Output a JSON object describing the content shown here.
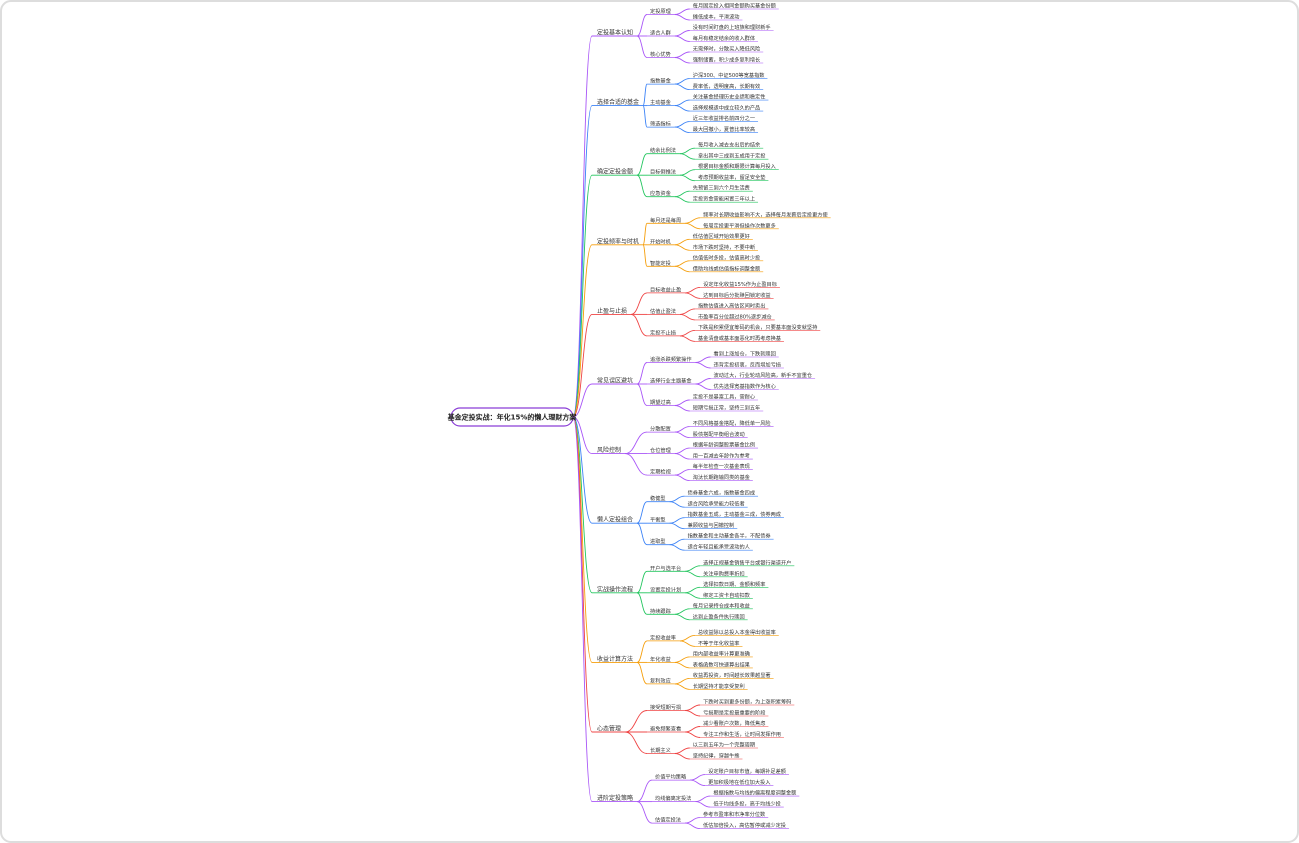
{
  "root": {
    "label": "基金定投实战：年化15%的懒人理财方案"
  },
  "branches": [
    {
      "label": "定投基本认知",
      "color": "#a855f7",
      "children": [
        {
          "label": "定投原理",
          "children": [
            "每月固定投入相同金额购买基金份额",
            "摊低成本，平滑波动"
          ]
        },
        {
          "label": "适合人群",
          "children": [
            "没有时间盯盘的上班族和理财新手",
            "每月有稳定结余的收入群体"
          ]
        },
        {
          "label": "核心优势",
          "children": [
            "无需择时，分散买入降低风险",
            "强制储蓄，积少成多复利增长"
          ]
        }
      ]
    },
    {
      "label": "选择合适的基金",
      "color": "#3b82f6",
      "children": [
        {
          "label": "指数基金",
          "children": [
            "沪深300、中证500等宽基指数",
            "费率低，透明度高，长期有效"
          ]
        },
        {
          "label": "主动基金",
          "children": [
            "关注基金经理历史业绩和稳定性",
            "选择规模适中成立较久的产品"
          ]
        },
        {
          "label": "筛选指标",
          "children": [
            "近三年收益排名前四分之一",
            "最大回撤小，夏普比率较高"
          ]
        }
      ]
    },
    {
      "label": "确定定投金额",
      "color": "#22c55e",
      "children": [
        {
          "label": "结余比例法",
          "children": [
            "每月收入减去支出后的结余",
            "拿出其中三成到五成用于定投"
          ]
        },
        {
          "label": "目标倒推法",
          "children": [
            "根据目标金额和期限计算每月投入",
            "考虑预期收益率，留足安全垫"
          ]
        },
        {
          "label": "应急资金",
          "children": [
            "先预留三到六个月生活费",
            "定投资金需能闲置三年以上"
          ]
        }
      ]
    },
    {
      "label": "定投频率与时机",
      "color": "#f59e0b",
      "children": [
        {
          "label": "每月还是每周",
          "children": [
            "频率对长期收益影响不大，选择每月发薪后定投更方便",
            "每周定投更平滑但操作次数更多"
          ]
        },
        {
          "label": "开始时机",
          "children": [
            "低估值区域开始效果更好",
            "市场下跌时坚持，不要中断"
          ]
        },
        {
          "label": "智能定投",
          "children": [
            "估值低时多投，估值高时少投",
            "借助均线或估值指标调整金额"
          ]
        }
      ]
    },
    {
      "label": "止盈与止损",
      "color": "#ef4444",
      "children": [
        {
          "label": "目标收益止盈",
          "children": [
            "设定年化收益15%作为止盈目标",
            "达到目标后分批赎回锁定收益"
          ]
        },
        {
          "label": "估值止盈法",
          "children": [
            "指数估值进入高估区间时卖出",
            "市盈率百分位超过80%逐步减仓"
          ]
        },
        {
          "label": "定投不止损",
          "children": [
            "下跌是积累便宜筹码的机会，只要基本面没变就坚持",
            "基金清盘或基本面恶化时再考虑换基"
          ]
        }
      ]
    },
    {
      "label": "常见误区避坑",
      "color": "#a855f7",
      "children": [
        {
          "label": "追涨杀跌频繁操作",
          "children": [
            "看到上涨加仓，下跌就赎回",
            "违背定投初衷，反而增加亏损"
          ]
        },
        {
          "label": "选择行业主题基金",
          "children": [
            "波动过大，行业轮动风险高，新手不宜重仓",
            "优先选择宽基指数作为核心"
          ]
        },
        {
          "label": "期望过高",
          "children": [
            "定投不是暴富工具，需耐心",
            "短期亏损正常，坚持三到五年"
          ]
        }
      ]
    },
    {
      "label": "风险控制",
      "color": "#a855f7",
      "children": [
        {
          "label": "分散配置",
          "children": [
            "不同风格基金搭配，降低单一风险",
            "股债搭配平衡组合波动"
          ]
        },
        {
          "label": "仓位管理",
          "children": [
            "根据年龄调整股票基金比例",
            "用一百减去年龄作为参考"
          ]
        },
        {
          "label": "定期检视",
          "children": [
            "每半年检查一次基金表现",
            "淘汰长期跑输同类的基金"
          ]
        }
      ]
    },
    {
      "label": "懒人定投组合",
      "color": "#3b82f6",
      "children": [
        {
          "label": "稳健型",
          "children": [
            "债券基金六成，指数基金四成",
            "适合风险承受能力较低者"
          ]
        },
        {
          "label": "平衡型",
          "children": [
            "指数基金五成，主动基金三成，债券两成",
            "兼顾收益与回撤控制"
          ]
        },
        {
          "label": "进取型",
          "children": [
            "指数基金和主动基金各半，不配债券",
            "适合年轻且能承受波动的人"
          ]
        }
      ]
    },
    {
      "label": "实战操作流程",
      "color": "#22c55e",
      "children": [
        {
          "label": "开户与选平台",
          "children": [
            "选择正规基金销售平台或银行渠道开户",
            "关注申购费率折扣"
          ]
        },
        {
          "label": "设置定投计划",
          "children": [
            "选择扣款日期、金额和频率",
            "绑定工资卡自动扣款"
          ]
        },
        {
          "label": "持续跟踪",
          "children": [
            "每月记录持仓成本和收益",
            "达到止盈条件执行赎回"
          ]
        }
      ]
    },
    {
      "label": "收益计算方法",
      "color": "#f59e0b",
      "children": [
        {
          "label": "定投收益率",
          "children": [
            "总收益除以总投入本金得出收益率",
            "不等于年化收益率"
          ]
        },
        {
          "label": "年化收益",
          "children": [
            "用内部收益率计算更准确",
            "表格函数可快速算出结果"
          ]
        },
        {
          "label": "复利效应",
          "children": [
            "收益再投资，时间越长效果越显著",
            "长期坚持才能享受复利"
          ]
        }
      ]
    },
    {
      "label": "心态管理",
      "color": "#ef4444",
      "children": [
        {
          "label": "接受短期亏损",
          "children": [
            "下跌时买到更多份额，为上涨积累筹码",
            "亏损期是定投最重要的阶段"
          ]
        },
        {
          "label": "避免频繁查看",
          "children": [
            "减少看账户次数，降低焦虑",
            "专注工作和生活，让时间发挥作用"
          ]
        },
        {
          "label": "长期主义",
          "children": [
            "以三到五年为一个完整周期",
            "坚持纪律，穿越牛熊"
          ]
        }
      ]
    },
    {
      "label": "进阶定投策略",
      "color": "#a855f7",
      "children": [
        {
          "label": "价值平均策略",
          "children": [
            "设定账户目标市值，每期补足差额",
            "更加积极地在低位加大投入"
          ]
        },
        {
          "label": "均线偏离定投法",
          "children": [
            "根据指数与均线的偏离程度调整金额",
            "低于均线多投，高于均线少投"
          ]
        },
        {
          "label": "估值定投法",
          "children": [
            "参考市盈率和市净率分位数",
            "低估加倍投入，高估暂停或减少定投"
          ]
        }
      ]
    }
  ]
}
